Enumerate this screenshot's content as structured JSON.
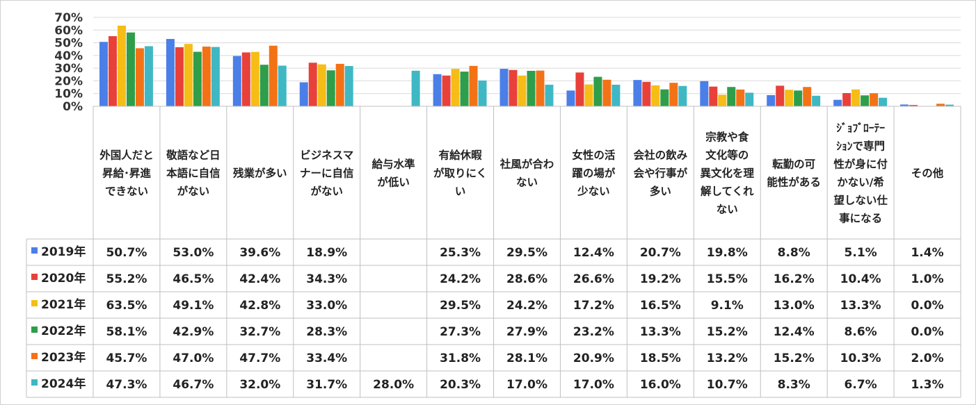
{
  "chart_data": {
    "type": "bar",
    "categories": [
      "外国人だと昇給・昇進できない",
      "敬語など日本語に自信がない",
      "残業が多い",
      "ビジネスマナーに自信がない",
      "給与水準が低い",
      "有給休暇が取りにくい",
      "社風が合わない",
      "女性の活躍の場が少ない",
      "会社の飲み会や行事が多い",
      "宗教や食文化等の異文化を理解してくれない",
      "転勤の可能性がある",
      "ｼﾞｮﾌﾞﾛｰﾃｰｼｮﾝで専門性が身に付かない/希望しない仕事になる",
      "その他"
    ],
    "category_lines": [
      [
        "外国人だと",
        "昇給･昇進",
        "できない"
      ],
      [
        "敬語など日",
        "本語に自信",
        "がない"
      ],
      [
        "残業が多い"
      ],
      [
        "ビジネスマ",
        "ナーに自信",
        "がない"
      ],
      [
        "給与水準",
        "が低い"
      ],
      [
        "有給休暇",
        "が取りにく",
        "い"
      ],
      [
        "社風が合わ",
        "ない"
      ],
      [
        "女性の活",
        "躍の場が",
        "少ない"
      ],
      [
        "会社の飲み",
        "会や行事が",
        "多い"
      ],
      [
        "宗教や食",
        "文化等の",
        "異文化を理",
        "解してくれ",
        "ない"
      ],
      [
        "転勤の可",
        "能性がある"
      ],
      [
        "ｼﾞｮﾌﾞﾛｰﾃｰ",
        "ｼｮﾝで専門",
        "性が身に付",
        "かない/希",
        "望しない仕",
        "事になる"
      ],
      [
        "その他"
      ]
    ],
    "series": [
      {
        "name": "2019年",
        "color": "#4a7fe8",
        "values": [
          50.7,
          53.0,
          39.6,
          18.9,
          null,
          25.3,
          29.5,
          12.4,
          20.7,
          19.8,
          8.8,
          5.1,
          1.4
        ],
        "labels": [
          "50.7%",
          "53.0%",
          "39.6%",
          "18.9%",
          "",
          "25.3%",
          "29.5%",
          "12.4%",
          "20.7%",
          "19.8%",
          "8.8%",
          "5.1%",
          "1.4%"
        ]
      },
      {
        "name": "2020年",
        "color": "#e8413a",
        "values": [
          55.2,
          46.5,
          42.4,
          34.3,
          null,
          24.2,
          28.6,
          26.6,
          19.2,
          15.5,
          16.2,
          10.4,
          1.0
        ],
        "labels": [
          "55.2%",
          "46.5%",
          "42.4%",
          "34.3%",
          "",
          "24.2%",
          "28.6%",
          "26.6%",
          "19.2%",
          "15.5%",
          "16.2%",
          "10.4%",
          "1.0%"
        ]
      },
      {
        "name": "2021年",
        "color": "#f6bd16",
        "values": [
          63.5,
          49.1,
          42.8,
          33.0,
          null,
          29.5,
          24.2,
          17.2,
          16.5,
          9.1,
          13.0,
          13.3,
          0.0
        ],
        "labels": [
          "63.5%",
          "49.1%",
          "42.8%",
          "33.0%",
          "",
          "29.5%",
          "24.2%",
          "17.2%",
          "16.5%",
          "9.1%",
          "13.0%",
          "13.3%",
          "0.0%"
        ]
      },
      {
        "name": "2022年",
        "color": "#2e9e4a",
        "values": [
          58.1,
          42.9,
          32.7,
          28.3,
          null,
          27.3,
          27.9,
          23.2,
          13.3,
          15.2,
          12.4,
          8.6,
          0.0
        ],
        "labels": [
          "58.1%",
          "42.9%",
          "32.7%",
          "28.3%",
          "",
          "27.3%",
          "27.9%",
          "23.2%",
          "13.3%",
          "15.2%",
          "12.4%",
          "8.6%",
          "0.0%"
        ]
      },
      {
        "name": "2023年",
        "color": "#f47216",
        "values": [
          45.7,
          47.0,
          47.7,
          33.4,
          null,
          31.8,
          28.1,
          20.9,
          18.5,
          13.2,
          15.2,
          10.3,
          2.0
        ],
        "labels": [
          "45.7%",
          "47.0%",
          "47.7%",
          "33.4%",
          "",
          "31.8%",
          "28.1%",
          "20.9%",
          "18.5%",
          "13.2%",
          "15.2%",
          "10.3%",
          "2.0%"
        ]
      },
      {
        "name": "2024年",
        "color": "#3fb8c4",
        "values": [
          47.3,
          46.7,
          32.0,
          31.7,
          28.0,
          20.3,
          17.0,
          17.0,
          16.0,
          10.7,
          8.3,
          6.7,
          1.3
        ],
        "labels": [
          "47.3%",
          "46.7%",
          "32.0%",
          "31.7%",
          "28.0%",
          "20.3%",
          "17.0%",
          "17.0%",
          "16.0%",
          "10.7%",
          "8.3%",
          "6.7%",
          "1.3%"
        ]
      }
    ],
    "yticks": [
      "0%",
      "10%",
      "20%",
      "30%",
      "40%",
      "50%",
      "60%",
      "70%"
    ],
    "ylim": [
      0,
      70
    ],
    "grid": true,
    "legend": "table-left"
  }
}
